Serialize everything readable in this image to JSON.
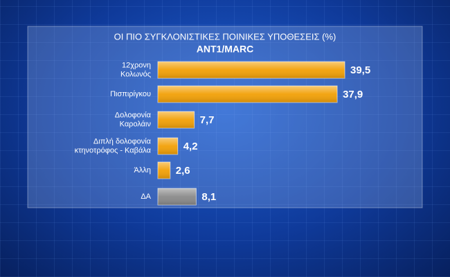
{
  "chart_data": {
    "type": "bar",
    "orientation": "horizontal",
    "title": "ΟΙ ΠΙΟ ΣΥΓΚΛΟΝΙΣΤΙΚΕΣ ΠΟΙΝΙΚΕΣ ΥΠΟΘΕΣΕΙΣ (%)",
    "subtitle": "ANT1/MARC",
    "categories": [
      [
        "12χρονη",
        "Κολωνός"
      ],
      [
        "Πισπιρίγκου"
      ],
      [
        "Δολοφονία",
        "Καρολάιν"
      ],
      [
        "Διπλή δολοφονία",
        "κτηνοτρόφος - Καβάλα"
      ],
      [
        "Άλλη"
      ],
      [
        "ΔΑ"
      ]
    ],
    "values": [
      39.5,
      37.9,
      7.7,
      4.2,
      2.6,
      8.1
    ],
    "value_labels": [
      "39,5",
      "37,9",
      "7,7",
      "4,2",
      "2,6",
      "8,1"
    ],
    "colors": [
      "#f2a007",
      "#f2a007",
      "#f2a007",
      "#f2a007",
      "#f2a007",
      "#8a8a8a"
    ]
  }
}
